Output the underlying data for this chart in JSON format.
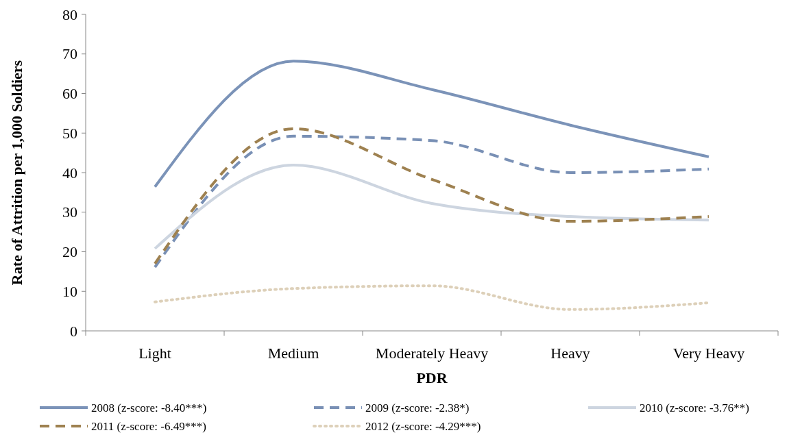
{
  "chart_data": {
    "type": "line",
    "xlabel": "PDR",
    "ylabel": "Rate of Attrition per 1,000 Soldiers",
    "categories": [
      "Light",
      "Medium",
      "Moderately Heavy",
      "Heavy",
      "Very Heavy"
    ],
    "ylim": [
      0,
      80
    ],
    "yticks": [
      0,
      10,
      20,
      30,
      40,
      50,
      60,
      70,
      80
    ],
    "grid": false,
    "legend": "bottom",
    "marker": "none",
    "series": [
      {
        "name": "2008 (z-score: -8.40***)",
        "color": "#7b93b8",
        "line_style": "solid",
        "values": [
          36.4,
          68.2,
          61,
          52,
          44
        ]
      },
      {
        "name": "2009 (z-score: -2.38*)",
        "color": "#7990b5",
        "line_style": "dashed",
        "values": [
          16.1,
          49.2,
          48.1,
          40,
          40.9
        ]
      },
      {
        "name": "2010 (z-score: -3.76**)",
        "color": "#cdd5e0",
        "line_style": "solid",
        "values": [
          20.8,
          41.9,
          32.2,
          28.9,
          28
        ]
      },
      {
        "name": "2011 (z-score: -6.49***)",
        "color": "#9e8150",
        "line_style": "dashed",
        "values": [
          17,
          51.1,
          38.3,
          27.7,
          28.9
        ]
      },
      {
        "name": "2012 (z-score: -4.29***)",
        "color": "#ddd0b9",
        "line_style": "dotted",
        "values": [
          7.3,
          10.7,
          11.4,
          5.4,
          7.1
        ]
      }
    ]
  }
}
